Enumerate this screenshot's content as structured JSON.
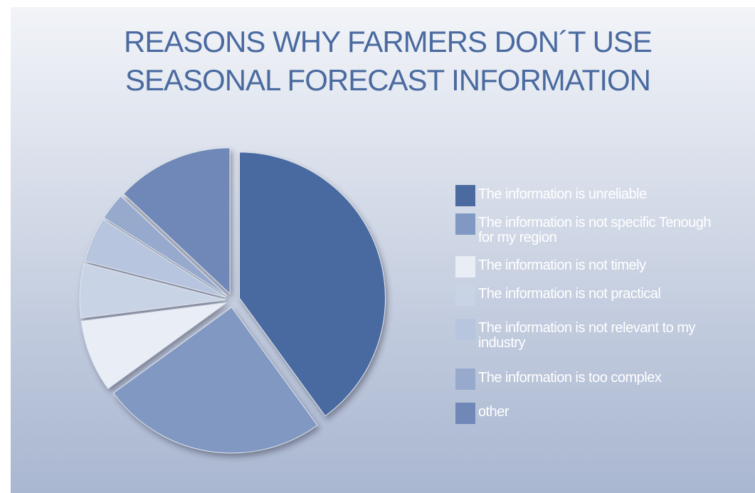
{
  "chart_data": {
    "type": "pie",
    "title": "REASONS WHY FARMERS DON´T USE SEASONAL FORECAST INFORMATION",
    "categories": [
      "The information is unreliable",
      "The information is not specific Tenough for my region",
      "The information is not timely",
      "The information is not practical",
      "The information is not relevant to my industry",
      "The information is too complex",
      "other"
    ],
    "values": [
      40,
      25,
      8,
      6,
      5,
      3,
      13
    ],
    "colors": [
      "#4a6aa0",
      "#8098c2",
      "#e8edf6",
      "#c9d3e6",
      "#b7c5de",
      "#97aacd",
      "#6f88b7"
    ],
    "legend": "right"
  }
}
